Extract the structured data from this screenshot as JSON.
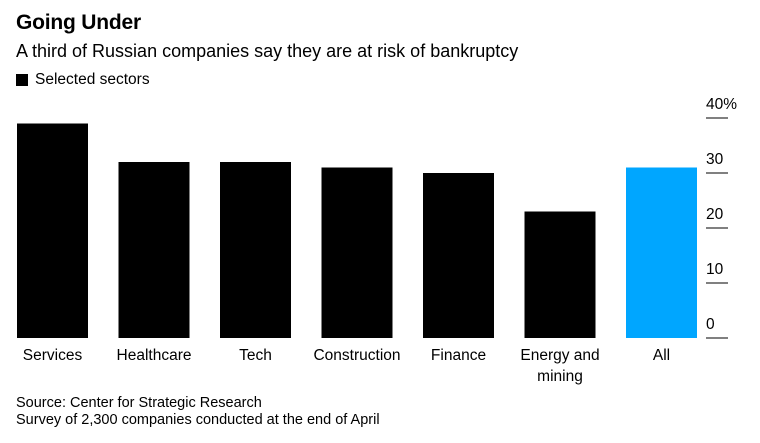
{
  "title": "Going Under",
  "subtitle": "A third of Russian companies say they are at risk of bankruptcy",
  "legend": {
    "label": "Selected sectors",
    "color": "#000000"
  },
  "source": {
    "line1": "Source: Center for Strategic Research",
    "line2": "Survey of 2,300 companies conducted at the end of April"
  },
  "chart_data": {
    "type": "bar",
    "categories": [
      [
        "Services"
      ],
      [
        "Healthcare"
      ],
      [
        "Tech"
      ],
      [
        "Construction"
      ],
      [
        "Finance"
      ],
      [
        "Energy and",
        "mining"
      ],
      [
        "All"
      ]
    ],
    "values": [
      39,
      32,
      32,
      31,
      30,
      23,
      31
    ],
    "colors": [
      "#000000",
      "#000000",
      "#000000",
      "#000000",
      "#000000",
      "#000000",
      "#00a6ff"
    ],
    "title": "Going Under",
    "xlabel": "",
    "ylabel": "",
    "ylim": [
      0,
      40
    ],
    "y_ticks": [
      {
        "value": 0,
        "label": "0"
      },
      {
        "value": 10,
        "label": "10"
      },
      {
        "value": 20,
        "label": "20"
      },
      {
        "value": 30,
        "label": "30"
      },
      {
        "value": 40,
        "label": "40%"
      }
    ],
    "y_axis_position": "right",
    "legend": [
      "Selected sectors"
    ]
  }
}
